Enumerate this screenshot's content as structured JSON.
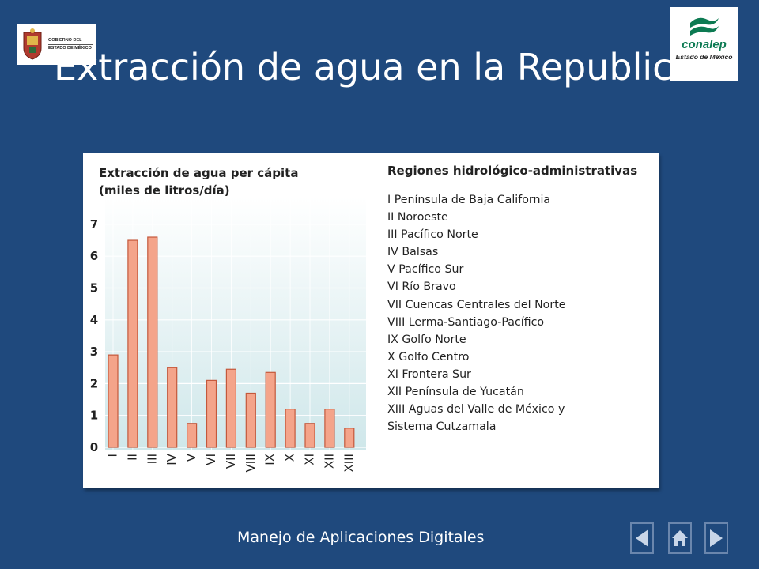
{
  "slide": {
    "title": "Extracción de agua en la Republica",
    "footer": "Manejo de Aplicaciones Digitales"
  },
  "logos": {
    "left": {
      "line1": "GOBIERNO DEL",
      "line2": "ESTADO DE MÉXICO"
    },
    "right": {
      "brand": "conalep",
      "sub": "Estado de México"
    }
  },
  "colors": {
    "background": "#1f497d",
    "bar": "#f4a48a",
    "bar_stroke": "#c4583b",
    "chart_bg": "#cfe7ea"
  },
  "nav": {
    "prev_icon": "arrow-left-icon",
    "home_icon": "home-icon",
    "next_icon": "arrow-right-icon"
  },
  "chart_data": {
    "type": "bar",
    "title": "Extracción de agua per cápita",
    "subtitle": "(miles de litros/día)",
    "categories": [
      "I",
      "II",
      "III",
      "IV",
      "V",
      "VI",
      "VII",
      "VIII",
      "IX",
      "X",
      "XI",
      "XII",
      "XIII"
    ],
    "values": [
      2.9,
      6.5,
      6.6,
      2.5,
      0.75,
      2.1,
      2.45,
      1.7,
      2.35,
      1.2,
      0.75,
      1.2,
      0.6
    ],
    "ylim": [
      0,
      7
    ],
    "yticks": [
      "0",
      "1",
      "2",
      "3",
      "4",
      "5",
      "6",
      "7"
    ],
    "xlabel": "",
    "ylabel": "",
    "grid": true,
    "legend_title": "Regiones hidrológico-administrativas",
    "legend": [
      "I Península de Baja California",
      "II Noroeste",
      "III Pacífico Norte",
      "IV Balsas",
      "V Pacífico Sur",
      "VI Río Bravo",
      "VII Cuencas Centrales del Norte",
      "VIII Lerma-Santiago-Pacífico",
      "IX Golfo Norte",
      "X Golfo Centro",
      "XI Frontera Sur",
      "XII Península de Yucatán",
      "XIII Aguas del Valle de México y",
      "Sistema Cutzamala"
    ]
  }
}
